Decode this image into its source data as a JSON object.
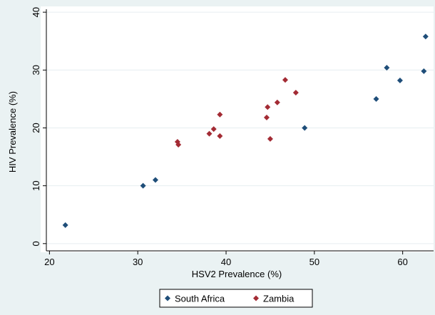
{
  "chart_data": {
    "type": "scatter",
    "xlabel": "HSV2 Prevalence (%)",
    "ylabel": "HIV Prevalence (%)",
    "xlim": [
      19,
      63.5
    ],
    "ylim": [
      -1.5,
      41
    ],
    "x_ticks": [
      20,
      30,
      40,
      50,
      60
    ],
    "y_ticks": [
      0,
      10,
      20,
      30,
      40
    ],
    "grid": {
      "horizontal": true,
      "vertical": false
    },
    "legend_position": "bottom-center",
    "series": [
      {
        "name": "South Africa",
        "color": "#1f4e79",
        "marker": "diamond",
        "points": [
          [
            21.8,
            3.2
          ],
          [
            30.6,
            10.0
          ],
          [
            32.0,
            11.0
          ],
          [
            48.9,
            20.0
          ],
          [
            57.0,
            25.0
          ],
          [
            58.2,
            30.4
          ],
          [
            59.7,
            28.2
          ],
          [
            62.4,
            29.8
          ],
          [
            62.6,
            35.8
          ]
        ]
      },
      {
        "name": "Zambia",
        "color": "#a32b34",
        "marker": "diamond",
        "points": [
          [
            34.5,
            17.6
          ],
          [
            34.6,
            17.1
          ],
          [
            38.1,
            19.0
          ],
          [
            38.6,
            19.8
          ],
          [
            39.3,
            22.3
          ],
          [
            39.3,
            18.6
          ],
          [
            44.6,
            21.8
          ],
          [
            44.7,
            23.6
          ],
          [
            45.0,
            18.1
          ],
          [
            45.8,
            24.4
          ],
          [
            46.7,
            28.3
          ],
          [
            47.9,
            26.1
          ]
        ]
      }
    ]
  }
}
